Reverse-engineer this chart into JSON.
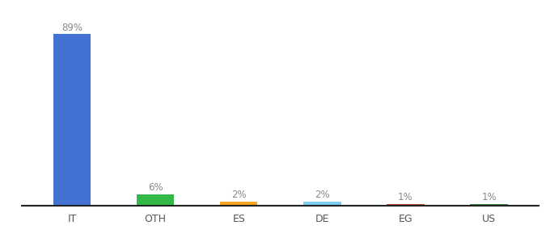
{
  "categories": [
    "IT",
    "OTH",
    "ES",
    "DE",
    "EG",
    "US"
  ],
  "values": [
    89,
    6,
    2,
    2,
    1,
    1
  ],
  "bar_colors": [
    "#4472d4",
    "#33b84a",
    "#f5a623",
    "#7ecef4",
    "#b84a2a",
    "#2e8b3a"
  ],
  "labels": [
    "89%",
    "6%",
    "2%",
    "2%",
    "1%",
    "1%"
  ],
  "ylim": [
    0,
    98
  ],
  "background_color": "#ffffff",
  "bar_width": 0.45,
  "label_fontsize": 8.5,
  "tick_fontsize": 9,
  "label_color": "#888888"
}
